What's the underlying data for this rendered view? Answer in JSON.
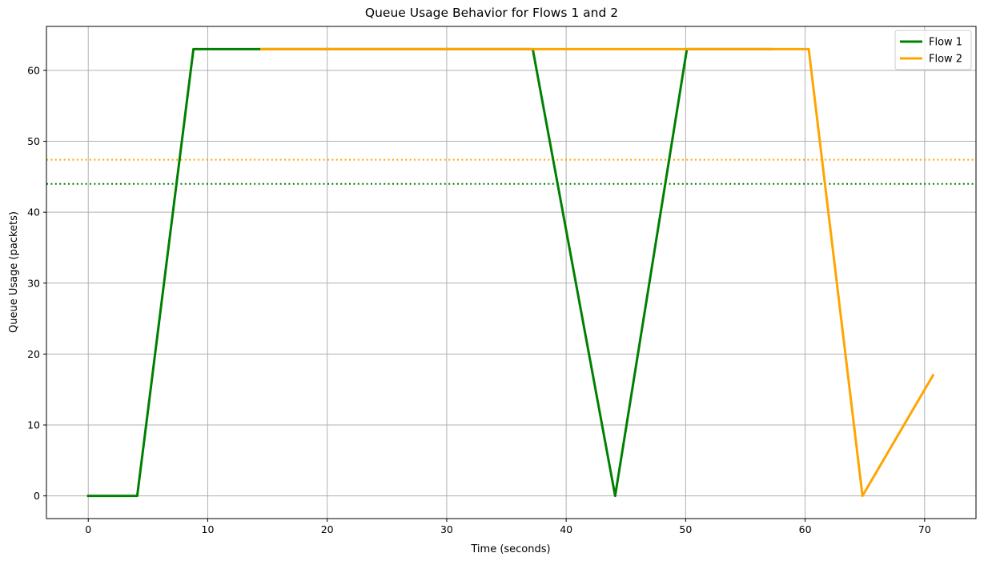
{
  "chart_data": {
    "type": "line",
    "title": "Queue Usage Behavior for Flows 1 and 2",
    "xlabel": "Time (seconds)",
    "ylabel": "Queue Usage (packets)",
    "xlim": [
      -3.5,
      74.3
    ],
    "ylim": [
      -3.2,
      66.2
    ],
    "xticks": [
      0,
      10,
      20,
      30,
      40,
      50,
      60,
      70
    ],
    "yticks": [
      0,
      10,
      20,
      30,
      40,
      50,
      60
    ],
    "grid": true,
    "legend_position": "top-right",
    "series": [
      {
        "name": "Flow 1",
        "color": "#008000",
        "x": [
          0,
          4.1,
          8.8,
          14.5,
          37.2,
          44.1,
          50.1,
          57.2
        ],
        "y": [
          0,
          0,
          63,
          63,
          63,
          0,
          63,
          63
        ]
      },
      {
        "name": "Flow 2",
        "color": "#FFA500",
        "x": [
          14.5,
          37.2,
          50.1,
          60.3,
          64.8,
          70.7
        ],
        "y": [
          63,
          63,
          63,
          63,
          0,
          17
        ]
      }
    ],
    "reference_lines": [
      {
        "axis": "y",
        "value": 47.4,
        "color": "#FFA500",
        "style": "dotted"
      },
      {
        "axis": "y",
        "value": 44.0,
        "color": "#008000",
        "style": "dotted"
      }
    ]
  }
}
